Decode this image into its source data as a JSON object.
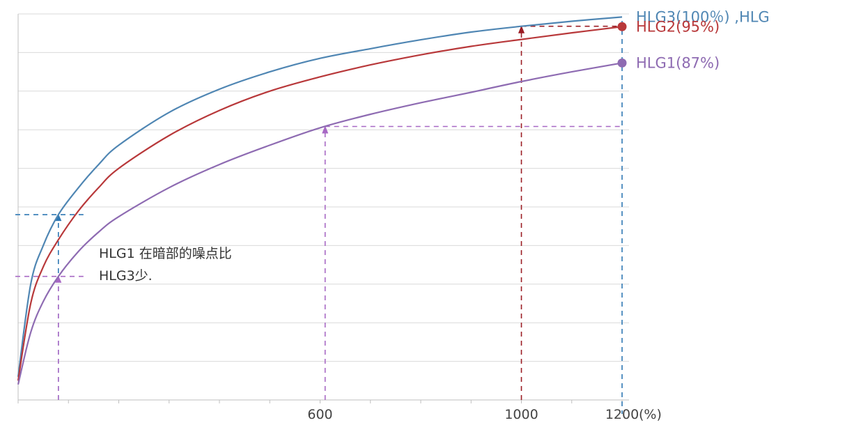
{
  "chart_data": {
    "type": "line",
    "xlim": [
      0,
      1200
    ],
    "ylim": [
      0,
      100
    ],
    "x_ticks": [
      {
        "value": 600,
        "label": "600"
      },
      {
        "value": 1000,
        "label": "1000"
      },
      {
        "value": 1200,
        "label": "1200"
      }
    ],
    "x_unit": "(%)",
    "grid": {
      "horizontal": true,
      "y_step": 10
    },
    "series": [
      {
        "name": "HLG3(100%)",
        "label": "HLG3(100％)  ,HLG",
        "color": "#4f86b3",
        "marker": false,
        "x": [
          0,
          25,
          50,
          80,
          120,
          160,
          200,
          300,
          400,
          500,
          600,
          700,
          800,
          900,
          1000,
          1100,
          1200
        ],
        "y": [
          6,
          30,
          40,
          48,
          55,
          61,
          66,
          74.5,
          80.5,
          85,
          88.5,
          91,
          93.3,
          95.3,
          96.8,
          98.1,
          99.2
        ]
      },
      {
        "name": "HLG2(95%)",
        "label": "HLG2(95%)",
        "color": "#b8383a",
        "marker": true,
        "x": [
          0,
          25,
          50,
          80,
          120,
          160,
          200,
          300,
          400,
          500,
          600,
          700,
          800,
          900,
          1000,
          1100,
          1200
        ],
        "y": [
          5,
          25,
          34.5,
          41.5,
          49,
          55,
          60,
          68.5,
          75,
          80,
          83.7,
          86.8,
          89.4,
          91.6,
          93.4,
          95.1,
          96.7
        ]
      },
      {
        "name": "HLG1(87%)",
        "label": "HLG1(87%)",
        "color": "#8e6bb2",
        "marker": true,
        "x": [
          0,
          25,
          50,
          80,
          120,
          160,
          200,
          300,
          400,
          500,
          600,
          700,
          800,
          900,
          1000,
          1100,
          1200
        ],
        "y": [
          4,
          17.5,
          25.5,
          32,
          38.5,
          43.5,
          47.5,
          55,
          61,
          66,
          70.5,
          74,
          77,
          79.7,
          82.5,
          85,
          87.3
        ]
      }
    ],
    "guides": [
      {
        "series": "HLG3(100%)",
        "x": 80,
        "color": "#2f78b4"
      },
      {
        "series": "HLG1(87%)",
        "x": 80,
        "color": "#a768c4"
      },
      {
        "series": "HLG1(87%)",
        "x": 610,
        "color": "#a768c4"
      },
      {
        "series": "HLG3(100%)",
        "x": 1000,
        "color": "#9b1d24"
      },
      {
        "series": "HLG1(87%)",
        "x": 1200,
        "color": "#2f78b4"
      }
    ],
    "annotation": {
      "lines": [
        "HLG1 在暗部的噪点比",
        "HLG3少."
      ]
    }
  }
}
